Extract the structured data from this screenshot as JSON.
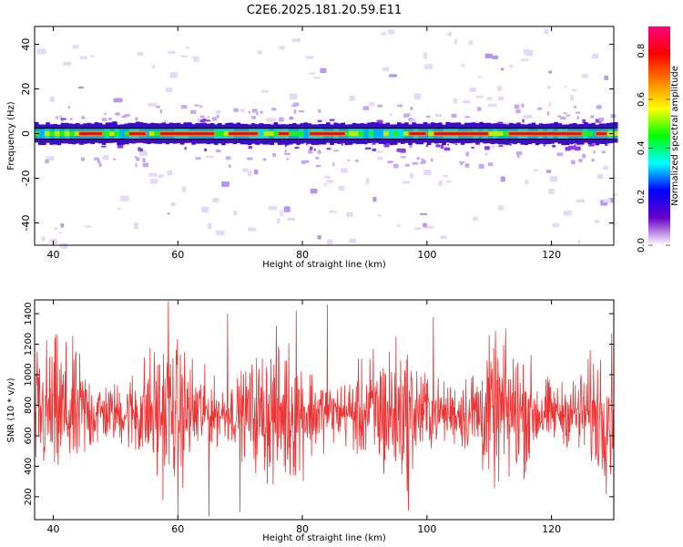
{
  "title": "C2E6.2025.181.20.59.E11",
  "chart_data": [
    {
      "type": "heatmap",
      "xlabel": "Height of straight line (km)",
      "ylabel": "Frequency (Hz)",
      "xlim": [
        37,
        130
      ],
      "ylim": [
        -50,
        48
      ],
      "xticks": [
        40,
        60,
        80,
        100,
        120
      ],
      "yticks": [
        -40,
        -20,
        0,
        20,
        40
      ],
      "reference_line_y": 0,
      "colorbar": {
        "label": "Normalized spectral amplitude",
        "range": [
          0,
          0.9
        ],
        "ticks": [
          0.0,
          0.2,
          0.4,
          0.6,
          0.8
        ],
        "colormap": [
          "#ffffff",
          "#6a00c8",
          "#0000ff",
          "#00ffff",
          "#00ff00",
          "#ffff00",
          "#ff8000",
          "#ff0000",
          "#ff0080"
        ]
      },
      "band_center_hz": 0,
      "band_halfwidth_hz": 4,
      "peak_segments_km": [
        [
          44,
          48
        ],
        [
          52,
          55
        ],
        [
          57,
          66
        ],
        [
          68,
          73
        ],
        [
          76,
          78
        ],
        [
          81,
          87
        ],
        [
          97,
          100
        ],
        [
          101,
          110
        ],
        [
          113,
          125
        ],
        [
          127,
          129
        ]
      ]
    },
    {
      "type": "line",
      "color": "#ee3333",
      "xlabel": "Height of straight line (km)",
      "ylabel": "SNR (10 * v/v)",
      "xlim": [
        37,
        130
      ],
      "ylim": [
        50,
        1490
      ],
      "xticks": [
        40,
        60,
        80,
        100,
        120
      ],
      "yticks": [
        200,
        400,
        600,
        800,
        1000,
        1200,
        1400
      ],
      "series": [
        {
          "baseline": 750,
          "typical_range": [
            400,
            1100
          ],
          "peaks": [
            {
              "x": 58.5,
              "y": 1480
            },
            {
              "x": 84,
              "y": 1460
            },
            {
              "x": 79,
              "y": 1420
            },
            {
              "x": 68,
              "y": 1400
            },
            {
              "x": 101,
              "y": 1380
            }
          ],
          "troughs": [
            {
              "x": 60,
              "y": 60
            },
            {
              "x": 65,
              "y": 70
            },
            {
              "x": 70,
              "y": 100
            },
            {
              "x": 97,
              "y": 110
            }
          ]
        }
      ]
    }
  ]
}
